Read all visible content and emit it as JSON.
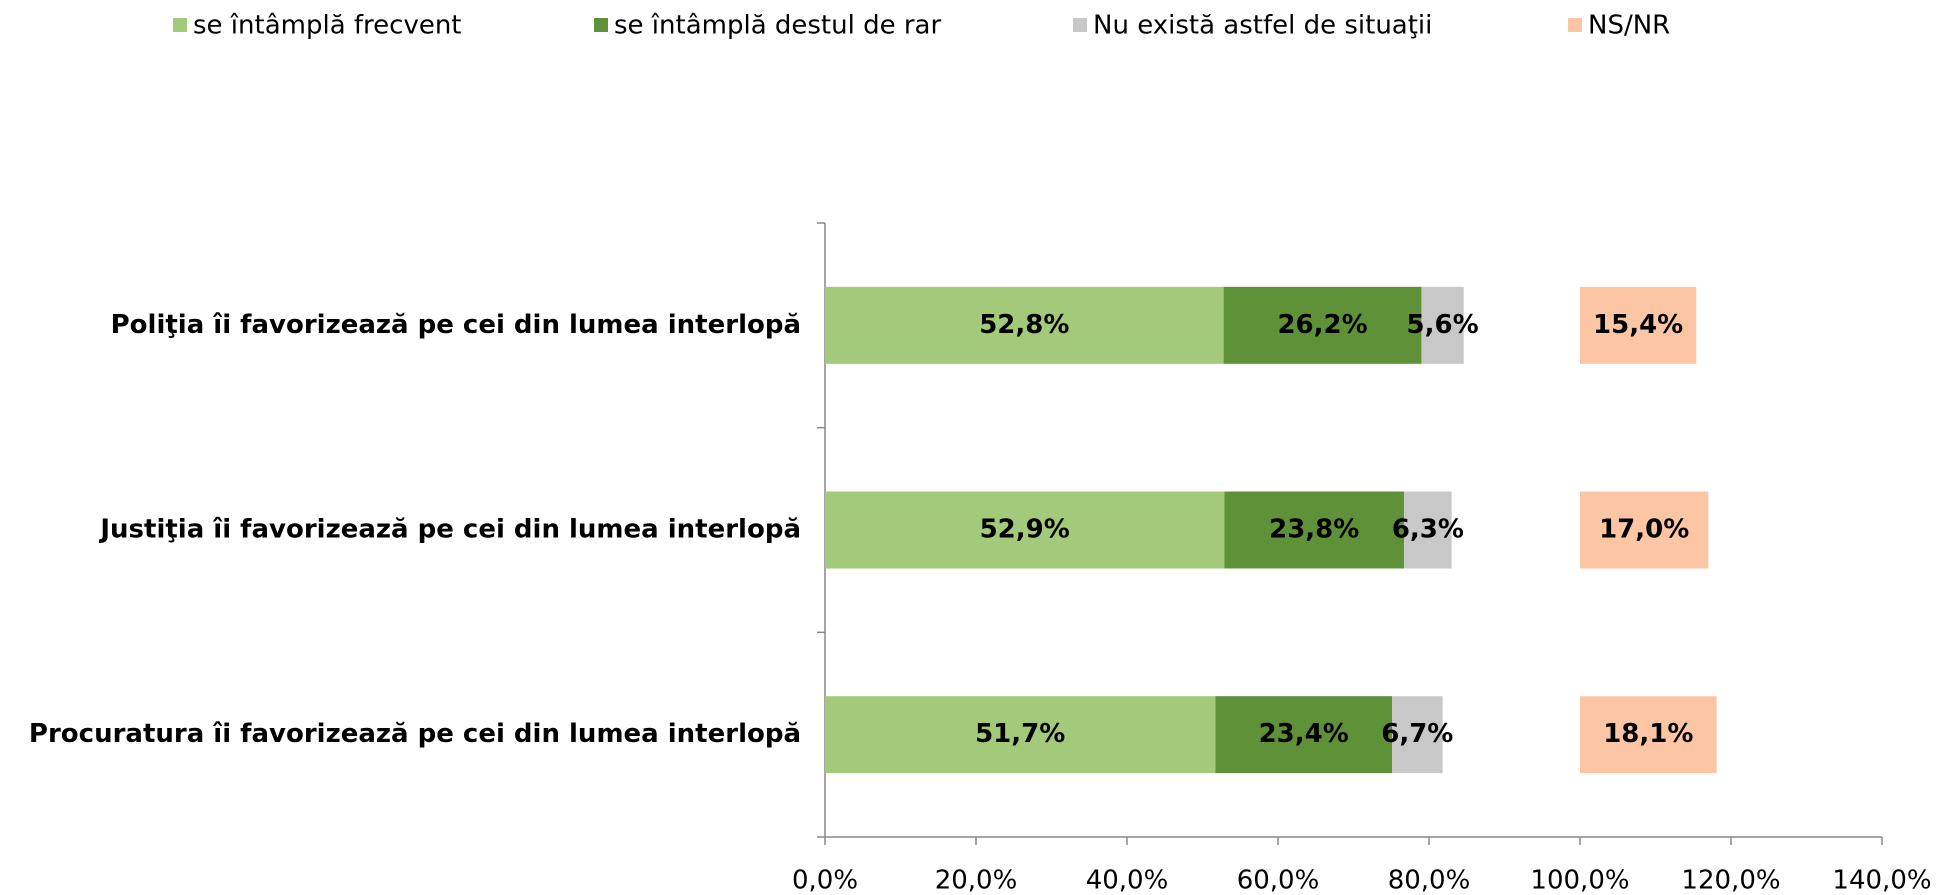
{
  "chart_data": {
    "type": "stacked_barh",
    "categories": [
      "Poliţia îi favorizează pe cei din lumea interlopă",
      "Justiţia îi favorizează pe cei din lumea interlopă",
      "Procuratura îi favorizează pe cei din lumea interlopă"
    ],
    "series": [
      {
        "name": "se întâmplă frecvent",
        "color": "#a3c97b",
        "values": [
          52.8,
          52.9,
          51.7
        ],
        "value_labels": [
          "52,8%",
          "52,9%",
          "51,7%"
        ]
      },
      {
        "name": "se întâmplă destul de rar",
        "color": "#5f9138",
        "values": [
          26.2,
          23.8,
          23.4
        ],
        "value_labels": [
          "26,2%",
          "23,8%",
          "23,4%"
        ]
      },
      {
        "name": "Nu există astfel de situaţii",
        "color": "#c8c8c8",
        "values": [
          5.6,
          6.3,
          6.7
        ],
        "value_labels": [
          "5,6%",
          "6,3%",
          "6,7%"
        ]
      },
      {
        "name": "NS/NR",
        "color": "#fcc6a5",
        "base": 100,
        "values": [
          15.4,
          17.0,
          18.1
        ],
        "value_labels": [
          "15,4%",
          "17,0%",
          "18,1%"
        ]
      }
    ],
    "xlim": [
      0,
      140
    ],
    "xticks": [
      {
        "value": 0,
        "label": "0,0%"
      },
      {
        "value": 20,
        "label": "20,0%"
      },
      {
        "value": 40,
        "label": "40,0%"
      },
      {
        "value": 60,
        "label": "60,0%"
      },
      {
        "value": 80,
        "label": "80,0%"
      },
      {
        "value": 100,
        "label": "100,0%"
      },
      {
        "value": 120,
        "label": "120,0%"
      },
      {
        "value": 140,
        "label": "140,0%"
      }
    ],
    "legend": "top",
    "grid": false
  }
}
